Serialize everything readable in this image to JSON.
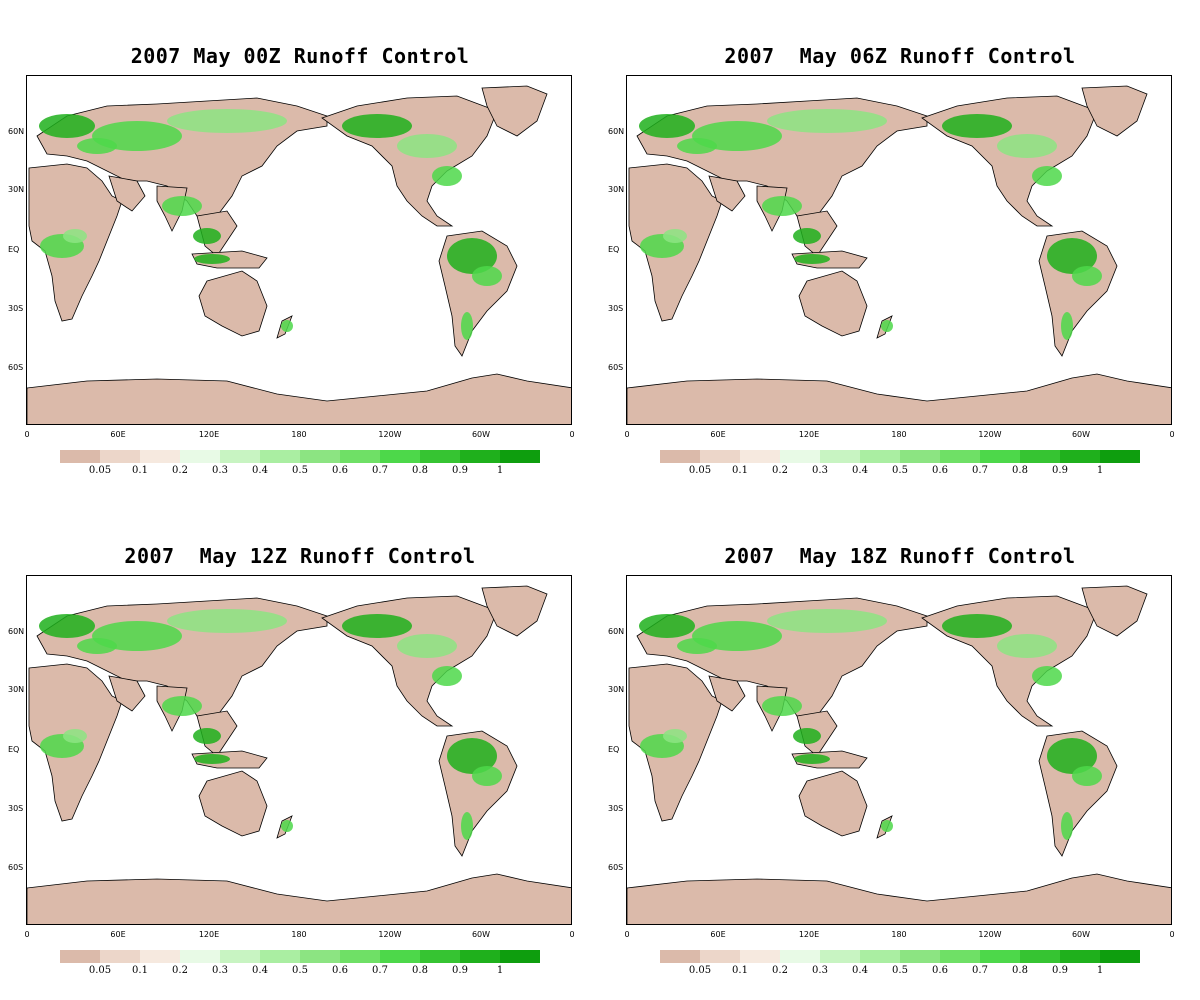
{
  "panels": [
    {
      "title": "2007 May 00Z Runoff Control"
    },
    {
      "title": "2007  May 06Z Runoff Control"
    },
    {
      "title": "2007  May 12Z Runoff Control"
    },
    {
      "title": "2007  May 18Z Runoff Control"
    }
  ],
  "axes": {
    "lat_labels": [
      "60N",
      "30N",
      "EQ",
      "30S",
      "60S"
    ],
    "lon_labels": [
      "0",
      "60E",
      "120E",
      "180",
      "120W",
      "60W",
      "0"
    ]
  },
  "colorbar": {
    "labels": [
      "0.05",
      "0.1",
      "0.2",
      "0.3",
      "0.4",
      "0.5",
      "0.6",
      "0.7",
      "0.8",
      "0.9",
      "1"
    ],
    "colors": [
      "#dbbaaa",
      "#ecd6c9",
      "#f6e9df",
      "#e8fae6",
      "#c8f4c2",
      "#aaeea2",
      "#8ce482",
      "#6fe066",
      "#4dd84a",
      "#36c432",
      "#1fb01c",
      "#0e9e0e"
    ]
  },
  "land_color": "#dbbaaa",
  "greens": [
    "#c8f4c2",
    "#8ce482",
    "#4dd84a",
    "#1fb01c"
  ]
}
